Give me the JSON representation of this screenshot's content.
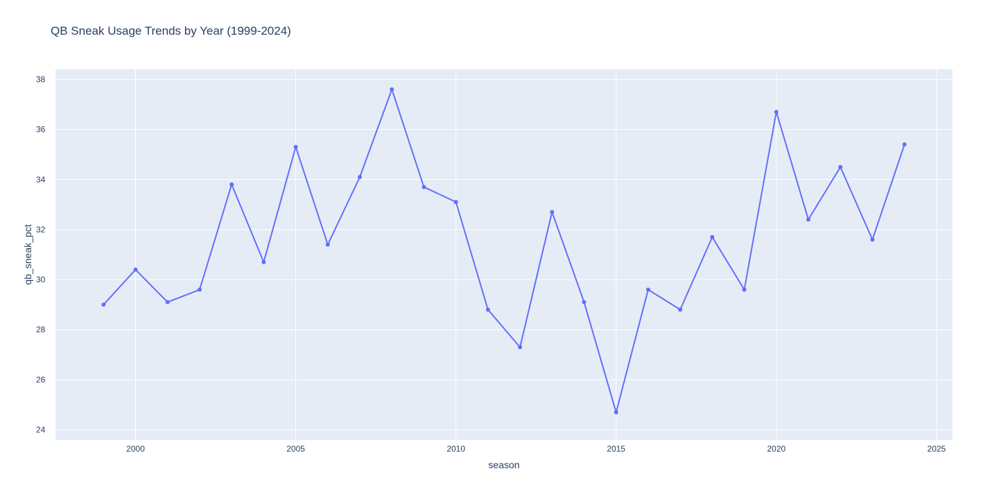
{
  "chart_data": {
    "type": "line",
    "title": "QB Sneak Usage Trends by Year (1999-2024)",
    "xlabel": "season",
    "ylabel": "qb_sneak_pct",
    "x": [
      1999,
      2000,
      2001,
      2002,
      2003,
      2004,
      2005,
      2006,
      2007,
      2008,
      2009,
      2010,
      2011,
      2012,
      2013,
      2014,
      2015,
      2016,
      2017,
      2018,
      2019,
      2020,
      2021,
      2022,
      2023,
      2024
    ],
    "series": [
      {
        "values": [
          29.0,
          30.4,
          29.1,
          29.6,
          33.8,
          30.7,
          35.3,
          31.4,
          34.1,
          37.6,
          33.7,
          33.1,
          28.8,
          27.3,
          32.7,
          29.1,
          24.7,
          29.6,
          28.8,
          31.7,
          29.6,
          36.7,
          32.4,
          34.5,
          31.6,
          35.4
        ],
        "color": "#636efa"
      }
    ],
    "xlim": [
      1997.5,
      2025.5
    ],
    "ylim": [
      23.6,
      38.4
    ],
    "xticks": [
      2000,
      2005,
      2010,
      2015,
      2020,
      2025
    ],
    "yticks": [
      24,
      26,
      28,
      30,
      32,
      34,
      36,
      38
    ],
    "grid": true,
    "legend": "none",
    "plot_background": "#e5ecf6",
    "grid_color": "#ffffff",
    "text_color": "#2a3f5f"
  }
}
